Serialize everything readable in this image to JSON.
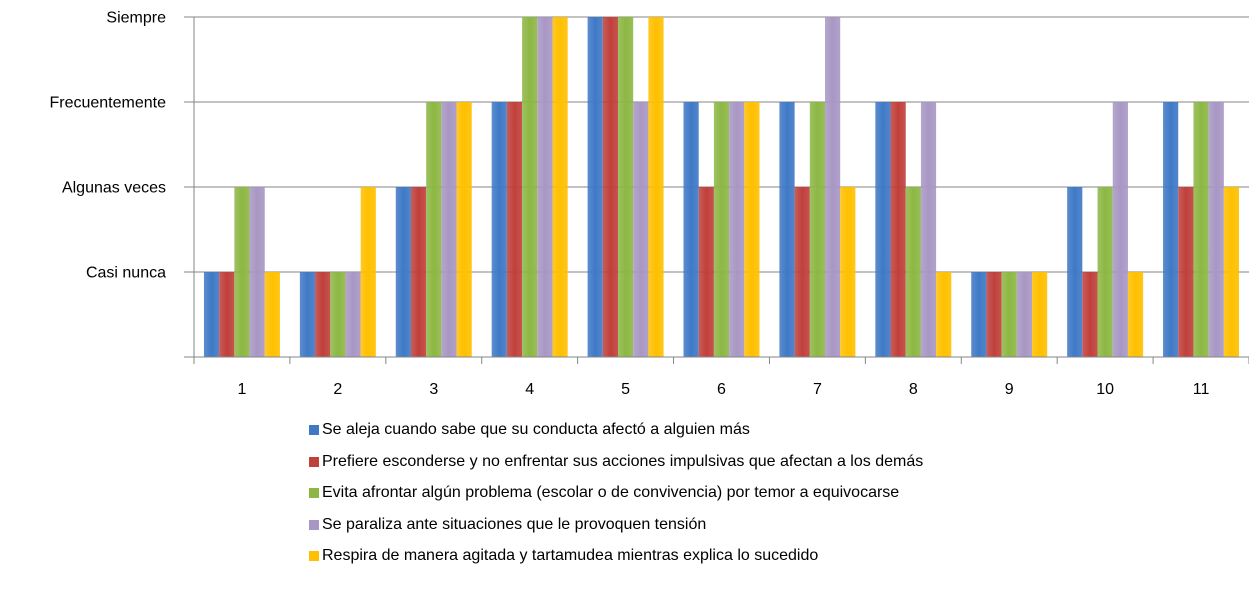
{
  "chart_data": {
    "type": "bar",
    "categories": [
      "1",
      "2",
      "3",
      "4",
      "5",
      "6",
      "7",
      "8",
      "9",
      "10",
      "11"
    ],
    "y_tick_labels": [
      "Casi nunca",
      "Algunas veces",
      "Frecuentemente",
      "Siempre"
    ],
    "y_tick_values": [
      1,
      2,
      3,
      4
    ],
    "ylim": [
      0,
      4
    ],
    "grid": true,
    "legend_position": "bottom",
    "series": [
      {
        "name": "Se aleja cuando sabe que su conducta afectó a alguien más",
        "color": "#3f79c6",
        "values": [
          1,
          1,
          2,
          3,
          4,
          3,
          3,
          3,
          1,
          2,
          3
        ]
      },
      {
        "name": "Prefiere esconderse y no enfrentar sus acciones impulsivas que afectan a los demás",
        "color": "#c0403b",
        "values": [
          1,
          1,
          2,
          3,
          4,
          2,
          2,
          3,
          1,
          1,
          2
        ]
      },
      {
        "name": "Evita afrontar algún problema (escolar o de convivencia) por temor a equivocarse",
        "color": "#8db744",
        "values": [
          2,
          1,
          3,
          4,
          4,
          3,
          3,
          2,
          1,
          2,
          3
        ]
      },
      {
        "name": "Se paraliza ante situaciones que le provoquen tensión",
        "color": "#a897c4",
        "values": [
          2,
          1,
          3,
          4,
          3,
          3,
          4,
          3,
          1,
          3,
          3
        ]
      },
      {
        "name": "Respira de manera agitada y tartamudea mientras explica lo sucedido",
        "color": "#ffc000",
        "values": [
          1,
          2,
          3,
          4,
          4,
          3,
          2,
          1,
          1,
          1,
          2
        ]
      }
    ]
  }
}
